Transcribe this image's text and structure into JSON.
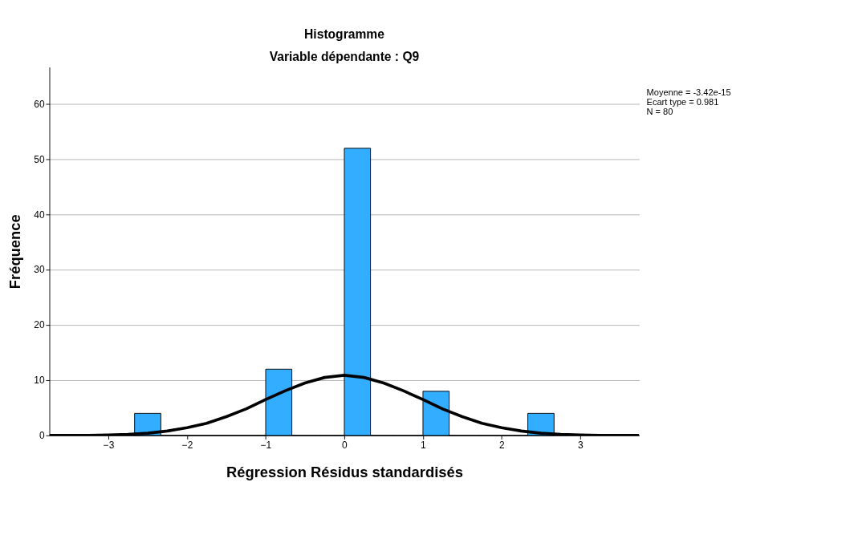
{
  "chart_data": {
    "type": "histogram",
    "title": "Histogramme",
    "subtitle": "Variable dépendante : Q9",
    "xlabel": "Régression Résidus standardisés",
    "ylabel": "Fréquence",
    "bins": [
      -2.667,
      -2.333,
      -2.0,
      -1.667,
      -1.333,
      -1.0,
      -0.667,
      -0.333,
      0.0,
      0.333,
      0.667,
      1.0,
      1.333,
      1.667,
      2.0,
      2.333,
      2.667
    ],
    "values": [
      4,
      0,
      0,
      0,
      0,
      12,
      0,
      0,
      52,
      0,
      0,
      8,
      0,
      0,
      0,
      4
    ],
    "color": "#33adff",
    "series": [
      {
        "type": "line",
        "color": "#000000",
        "x": [
          -3.75,
          -3.5,
          -3.25,
          -3.0,
          -2.75,
          -2.5,
          -2.25,
          -2.0,
          -1.75,
          -1.5,
          -1.25,
          -1.0,
          -0.75,
          -0.5,
          -0.25,
          0.0,
          0.25,
          0.5,
          0.75,
          1.0,
          1.25,
          1.5,
          1.75,
          2.0,
          2.25,
          2.5,
          2.75,
          3.0,
          3.25,
          3.5,
          3.75
        ],
        "values": [
          0.0,
          0.0,
          0.0,
          0.1,
          0.2,
          0.4,
          0.8,
          1.4,
          2.2,
          3.4,
          4.8,
          6.5,
          8.1,
          9.5,
          10.5,
          10.9,
          10.5,
          9.5,
          8.1,
          6.5,
          4.8,
          3.4,
          2.2,
          1.4,
          0.8,
          0.4,
          0.2,
          0.1,
          0.0,
          0.0,
          0.0
        ]
      }
    ],
    "xlim": [
      -3.75,
      3.75
    ],
    "xticks": [
      -3,
      -2,
      -1,
      0,
      1,
      2,
      3
    ],
    "ylim": [
      0,
      66.7
    ],
    "yticks": [
      0,
      10,
      20,
      30,
      40,
      50,
      60
    ],
    "grid": "y",
    "legend": false,
    "annotations": [
      "Moyenne = -3.42e-15",
      "Ecart type = 0.981",
      "N = 80"
    ]
  }
}
